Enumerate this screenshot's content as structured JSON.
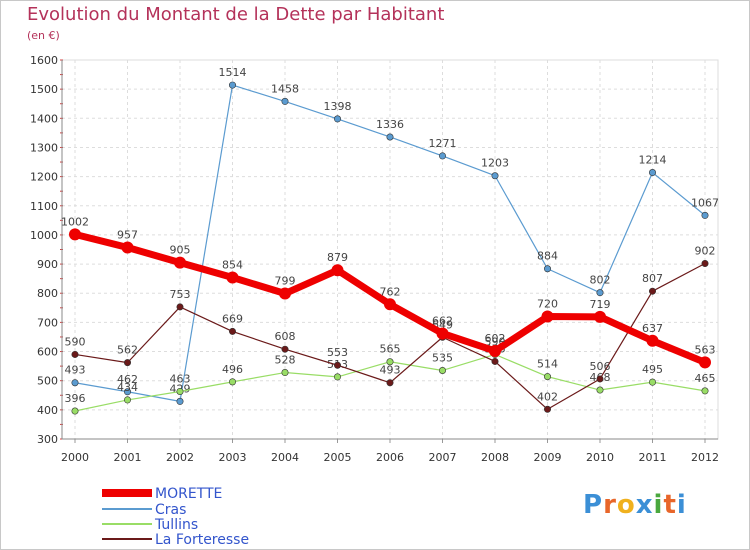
{
  "chart_data": {
    "type": "line",
    "title": "Evolution du Montant de la Dette par Habitant",
    "subtitle": "(en €)",
    "x": [
      "2000",
      "2001",
      "2002",
      "2003",
      "2004",
      "2005",
      "2006",
      "2007",
      "2008",
      "2009",
      "2010",
      "2011",
      "2012"
    ],
    "ylim": [
      300,
      1600
    ],
    "yticks": [
      300,
      400,
      500,
      600,
      700,
      800,
      900,
      1000,
      1100,
      1200,
      1300,
      1400,
      1500,
      1600
    ],
    "grid": true,
    "legend_placement": "bottom-left",
    "series": [
      {
        "name": "MORETTE",
        "color": "#ee0000",
        "values": [
          1002,
          957,
          905,
          854,
          799,
          879,
          762,
          662,
          602,
          720,
          719,
          637,
          563
        ]
      },
      {
        "name": "Cras",
        "color": "#5b9bd0",
        "values": [
          493,
          462,
          429,
          1514,
          1458,
          1398,
          1336,
          1271,
          1203,
          884,
          802,
          1214,
          1067
        ]
      },
      {
        "name": "Tullins",
        "color": "#99dd66",
        "values": [
          396,
          434,
          463,
          496,
          528,
          513,
          565,
          535,
          590,
          514,
          468,
          495,
          465
        ]
      },
      {
        "name": "La Forteresse",
        "color": "#6b1a1a",
        "values": [
          590,
          562,
          753,
          669,
          608,
          553,
          493,
          649,
          566,
          402,
          506,
          807,
          902
        ]
      }
    ]
  },
  "logo": {
    "text": "Proxiti",
    "letters": [
      "P",
      "r",
      "o",
      "x",
      "i",
      "t",
      "i"
    ],
    "colors": [
      "#3b8fd6",
      "#e8662a",
      "#f0b11e",
      "#3b8fd6",
      "#4aa83e",
      "#e8662a",
      "#3b8fd6"
    ]
  }
}
